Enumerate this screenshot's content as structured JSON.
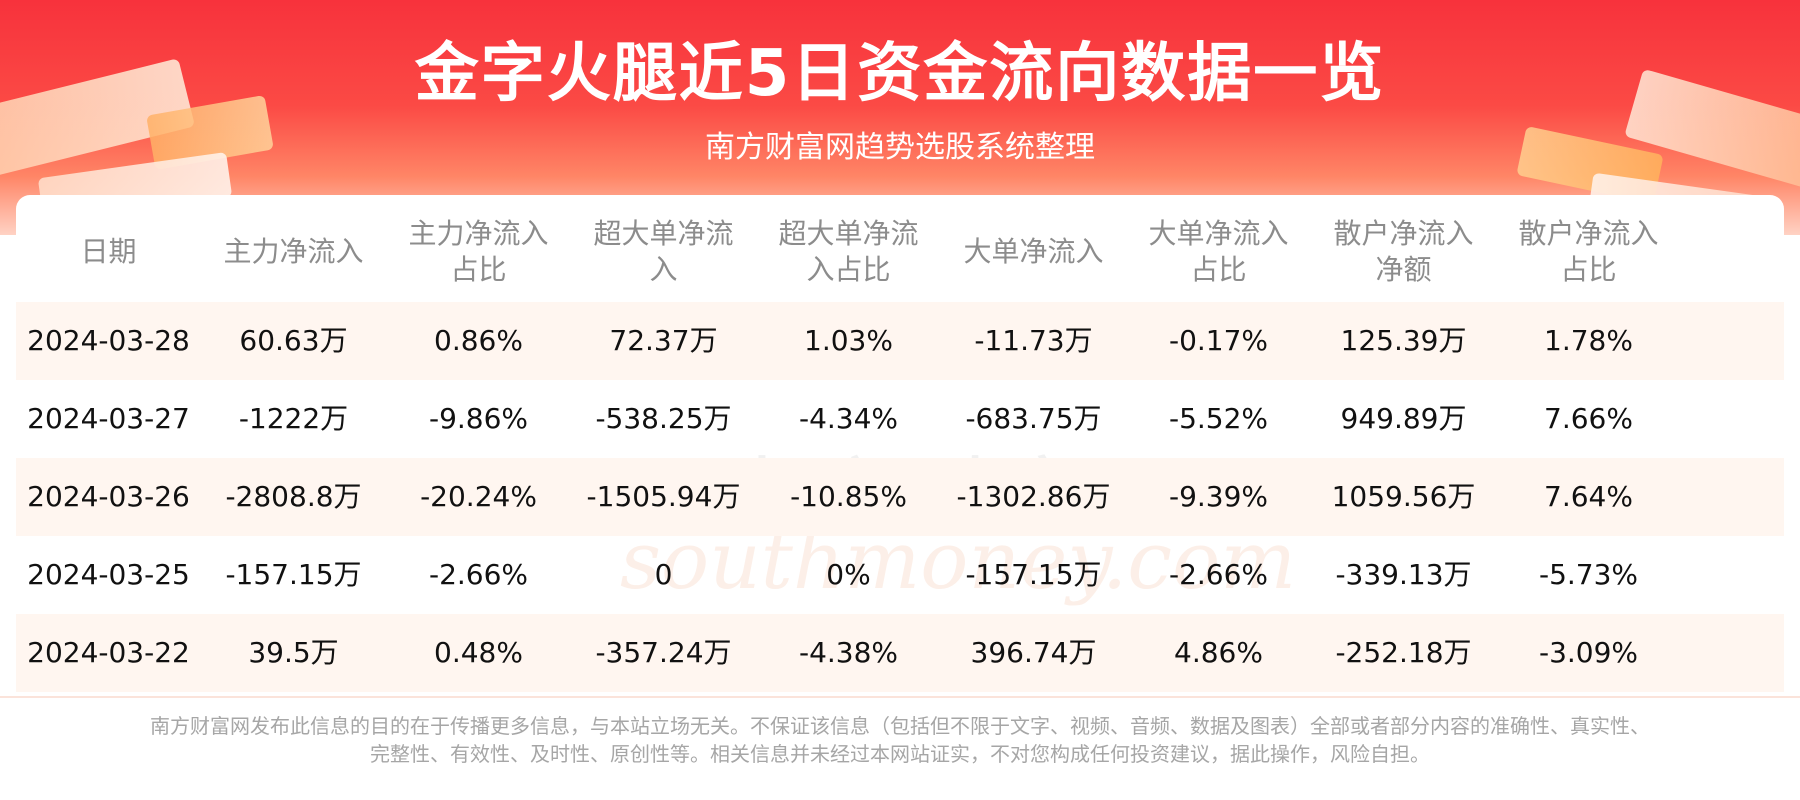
{
  "header": {
    "title": "金字火腿近5日资金流向数据一览",
    "subtitle": "南方财富网趋势选股系统整理"
  },
  "table": {
    "columns": [
      "日期",
      "主力净流入",
      "主力净流入\n占比",
      "超大单净流\n入",
      "超大单净流\n入占比",
      "大单净流入",
      "大单净流入\n占比",
      "散户净流入\n净额",
      "散户净流入\n占比"
    ],
    "rows": [
      [
        "2024-03-28",
        "60.63万",
        "0.86%",
        "72.37万",
        "1.03%",
        "-11.73万",
        "-0.17%",
        "125.39万",
        "1.78%"
      ],
      [
        "2024-03-27",
        "-1222万",
        "-9.86%",
        "-538.25万",
        "-4.34%",
        "-683.75万",
        "-5.52%",
        "949.89万",
        "7.66%"
      ],
      [
        "2024-03-26",
        "-2808.8万",
        "-20.24%",
        "-1505.94万",
        "-10.85%",
        "-1302.86万",
        "-9.39%",
        "1059.56万",
        "7.64%"
      ],
      [
        "2024-03-25",
        "-157.15万",
        "-2.66%",
        "0",
        "0%",
        "-157.15万",
        "-2.66%",
        "-339.13万",
        "-5.73%"
      ],
      [
        "2024-03-22",
        "39.5万",
        "0.48%",
        "-357.24万",
        "-4.38%",
        "396.74万",
        "4.86%",
        "-252.18万",
        "-3.09%"
      ]
    ]
  },
  "watermark": {
    "cn": "南方财富网",
    "en": "southmoney.com"
  },
  "footer": {
    "line1": "南方财富网发布此信息的目的在于传播更多信息，与本站立场无关。不保证该信息（包括但不限于文字、视频、音频、数据及图表）全部或者部分内容的准确性、真实性、",
    "line2": "完整性、有效性、及时性、原创性等。相关信息并未经过本网站证实，不对您构成任何投资建议，据此操作，风险自担。"
  },
  "colors": {
    "hero_red": "#f7323c",
    "row_alt": "#fff6f0",
    "header_text": "#8c8c8c",
    "footer_text": "#a6a6a6"
  }
}
